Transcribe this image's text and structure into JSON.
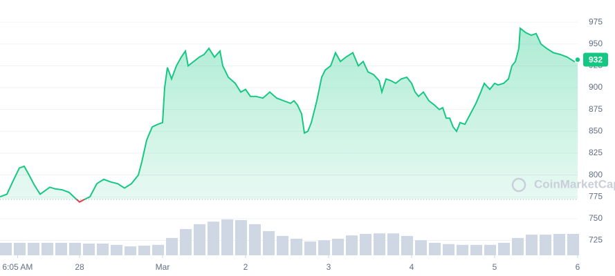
{
  "chart_data": {
    "type": "area",
    "x": [
      1,
      3,
      5,
      6.6,
      8,
      9.4,
      11,
      12.6,
      14,
      15.4,
      17,
      19,
      21,
      22.6,
      24,
      25.4,
      27,
      29,
      31,
      33,
      35,
      37,
      39,
      41,
      42,
      43.4,
      45,
      46.6,
      48,
      48.6,
      49.4,
      50.6,
      52,
      53.4,
      54.6,
      55.4,
      57,
      58.6,
      60,
      61.4,
      63,
      64.6,
      65.4,
      67,
      69,
      70.6,
      72,
      73.4,
      75,
      77,
      79,
      81,
      83,
      85,
      86,
      87,
      88.2,
      89,
      90,
      91,
      92.6,
      94,
      95,
      96.6,
      98,
      99.4,
      101,
      103,
      104.6,
      106,
      107.4,
      109,
      110.6,
      111.4,
      112.6,
      114,
      115.4,
      117,
      118.6,
      120,
      121,
      122,
      123.4,
      125,
      126.6,
      128,
      129,
      130,
      131,
      132,
      133,
      134,
      135.4,
      137,
      138.6,
      140,
      141,
      142.6,
      144,
      145,
      146.6,
      148,
      149,
      150,
      151,
      151.4,
      153,
      154.6,
      156,
      157.4,
      159,
      161,
      163,
      165,
      167,
      168
    ],
    "values": [
      775,
      778,
      795,
      808,
      810,
      800,
      788,
      778,
      782,
      786,
      784,
      783,
      780,
      774,
      769,
      772,
      775,
      790,
      795,
      792,
      790,
      785,
      790,
      800,
      815,
      840,
      855,
      858,
      860,
      900,
      923,
      910,
      925,
      935,
      942,
      925,
      930,
      935,
      938,
      945,
      935,
      942,
      925,
      912,
      905,
      895,
      898,
      890,
      890,
      888,
      895,
      888,
      885,
      882,
      885,
      880,
      870,
      848,
      850,
      860,
      885,
      912,
      920,
      925,
      940,
      930,
      935,
      940,
      925,
      930,
      918,
      915,
      908,
      895,
      910,
      908,
      905,
      910,
      912,
      905,
      895,
      890,
      895,
      885,
      880,
      875,
      877,
      865,
      865,
      855,
      850,
      860,
      858,
      870,
      882,
      895,
      905,
      898,
      905,
      903,
      905,
      910,
      925,
      930,
      945,
      968,
      963,
      960,
      962,
      950,
      945,
      940,
      938,
      935,
      930,
      932
    ],
    "color": "#16c784",
    "down_color": "#ea3943",
    "baseline": 772,
    "current_price": 932,
    "volume": {
      "axis": "y2",
      "color": "#cfd6e4",
      "x": [
        1,
        5,
        9,
        13,
        17,
        21,
        25,
        29,
        33,
        37,
        41,
        45,
        49,
        53,
        57,
        61,
        65,
        69,
        73,
        77,
        81,
        85,
        89,
        93,
        97,
        101,
        105,
        109,
        113,
        117,
        121,
        125,
        129,
        133,
        137,
        141,
        145,
        149,
        153,
        157,
        161,
        165
      ],
      "values": [
        4.9,
        4.9,
        4.9,
        4.9,
        4.9,
        4.9,
        4.6,
        4.6,
        4.1,
        3.5,
        3.8,
        4.1,
        6.8,
        10.3,
        12.2,
        13.2,
        14.1,
        13.8,
        12.2,
        9.5,
        7.6,
        6.5,
        5.4,
        5.9,
        6.5,
        7.8,
        8.4,
        8.6,
        8.6,
        7.6,
        5.9,
        4.9,
        4.4,
        4.1,
        4.1,
        4.1,
        4.9,
        6.8,
        8.1,
        8.1,
        8.4,
        8.4
      ]
    },
    "xlim": [
      1,
      168
    ],
    "xticks": [
      {
        "value": 6.083,
        "label": "6:05 AM"
      },
      {
        "value": 24,
        "label": "28"
      },
      {
        "value": 48,
        "label": "Mar"
      },
      {
        "value": 72,
        "label": "2"
      },
      {
        "value": 96,
        "label": "3"
      },
      {
        "value": 120,
        "label": "4"
      },
      {
        "value": 144,
        "label": "5"
      },
      {
        "value": 168,
        "label": "6"
      }
    ],
    "ylim": [
      708,
      1000
    ],
    "yticks": [
      725,
      750,
      775,
      800,
      825,
      850,
      875,
      900,
      925,
      950,
      975
    ],
    "y2lim": [
      0,
      100
    ],
    "grid": true,
    "watermark": "CoinMarketCap"
  }
}
